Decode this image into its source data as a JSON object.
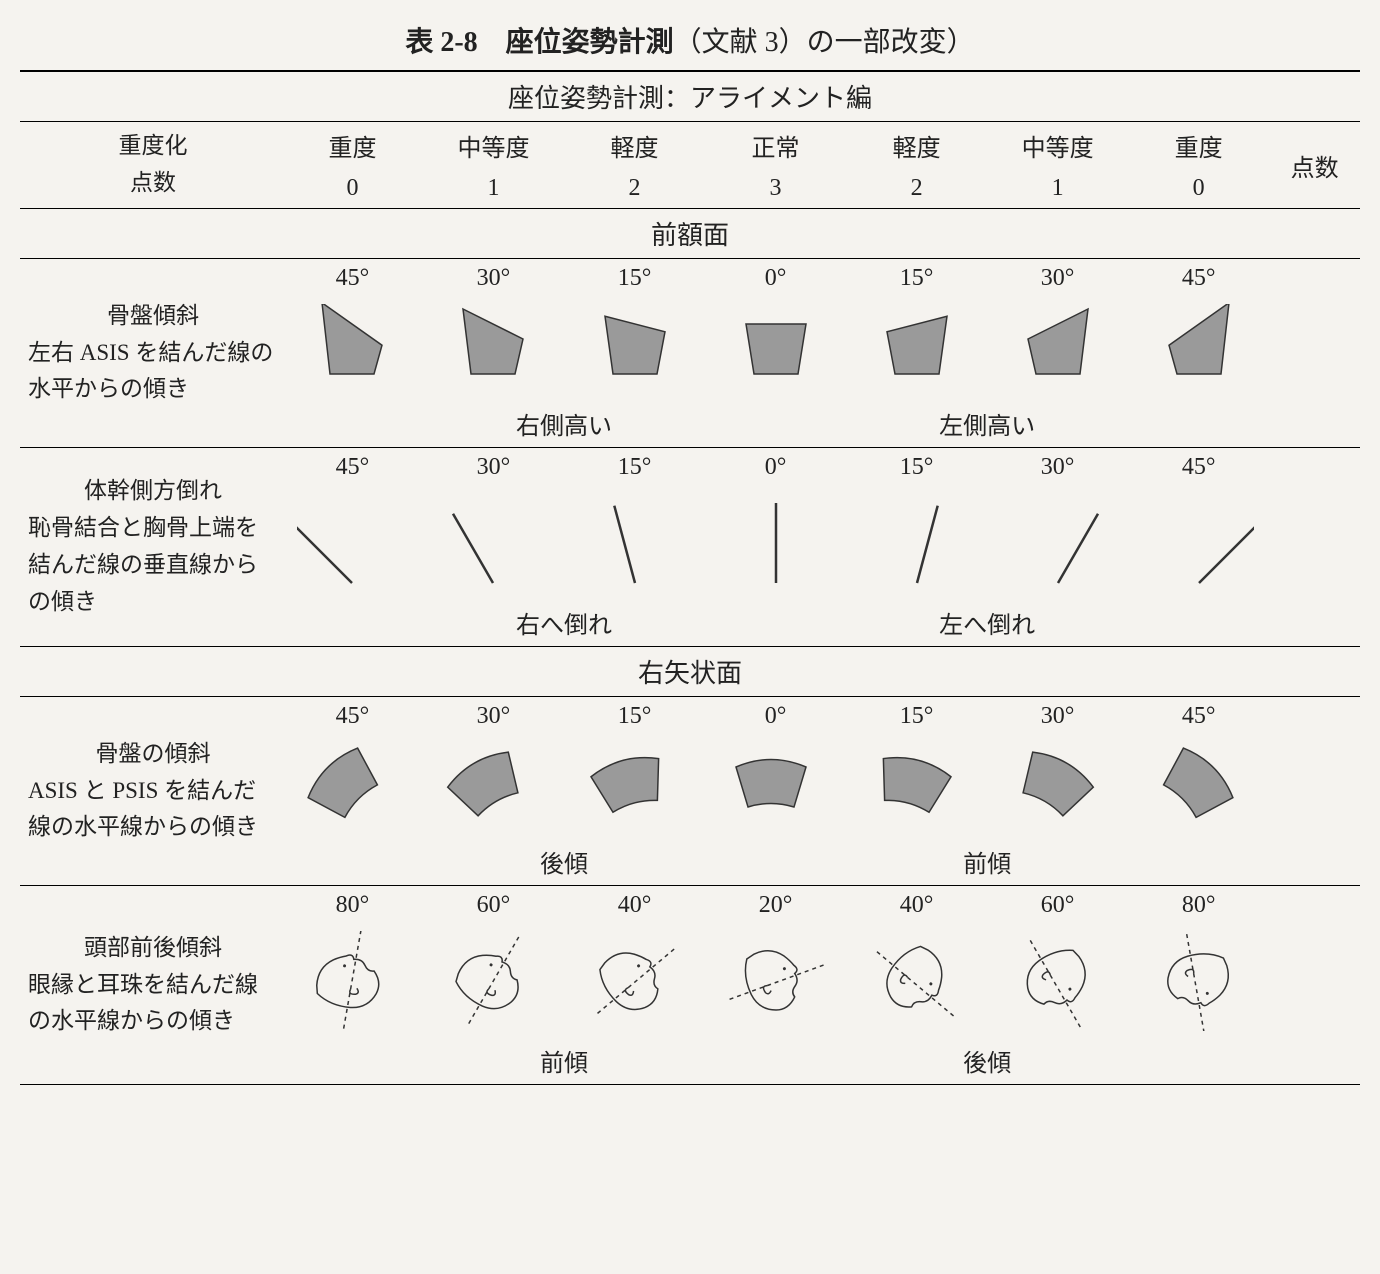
{
  "title": {
    "bold": "表 2-8　座位姿勢計測",
    "rest": "（文献 3）の一部改変）"
  },
  "subtitle": "座位姿勢計測：アライメント編",
  "header": {
    "severity_label_top": "重度化",
    "severity_label_bottom": "点数",
    "score_label": "点数",
    "levels": [
      "重度",
      "中等度",
      "軽度",
      "正常",
      "軽度",
      "中等度",
      "重度"
    ],
    "scores": [
      "0",
      "1",
      "2",
      "3",
      "2",
      "1",
      "0"
    ]
  },
  "section_frontal": "前額面",
  "section_sagittal": "右矢状面",
  "rows": {
    "pelvis_tilt_frontal": {
      "title": "骨盤傾斜",
      "desc": "左右 ASIS を結んだ線の水平からの傾き",
      "angles": [
        "45°",
        "30°",
        "15°",
        "0°",
        "15°",
        "30°",
        "45°"
      ],
      "sub_left": "右側高い",
      "sub_right": "左側高い",
      "shape_color": "#9a9a9a",
      "tilt_deg": [
        -45,
        -30,
        -15,
        0,
        15,
        30,
        45
      ]
    },
    "trunk_lateral": {
      "title": "体幹側方倒れ",
      "desc": "恥骨結合と胸骨上端を結んだ線の垂直線からの傾き",
      "angles": [
        "45°",
        "30°",
        "15°",
        "0°",
        "15°",
        "30°",
        "45°"
      ],
      "sub_left": "右へ倒れ",
      "sub_right": "左へ倒れ",
      "line_color": "#333333",
      "lean_deg": [
        -45,
        -30,
        -15,
        0,
        15,
        30,
        45
      ]
    },
    "pelvis_tilt_sagittal": {
      "title": "骨盤の傾斜",
      "desc": "ASIS と PSIS を結んだ線の水平線からの傾き",
      "angles": [
        "45°",
        "30°",
        "15°",
        "0°",
        "15°",
        "30°",
        "45°"
      ],
      "sub_left": "後傾",
      "sub_right": "前傾",
      "shape_color": "#9a9a9a",
      "tilt_deg": [
        -45,
        -30,
        -15,
        0,
        15,
        30,
        45
      ]
    },
    "head_tilt": {
      "title": "頭部前後傾斜",
      "desc": "眼縁と耳珠を結んだ線の水平線からの傾き",
      "angles": [
        "80°",
        "60°",
        "40°",
        "20°",
        "40°",
        "60°",
        "80°"
      ],
      "sub_left": "前傾",
      "sub_right": "後傾",
      "tilt_deg": [
        80,
        60,
        40,
        20,
        -40,
        -60,
        -80
      ]
    }
  },
  "style": {
    "background": "#f5f3ef",
    "text_color": "#222222",
    "rule_color": "#000000",
    "shape_fill": "#9a9a9a",
    "shape_stroke": "#333333",
    "font_family": "serif",
    "title_fontsize": 28,
    "cell_fontsize": 24,
    "label_fontsize": 23
  }
}
